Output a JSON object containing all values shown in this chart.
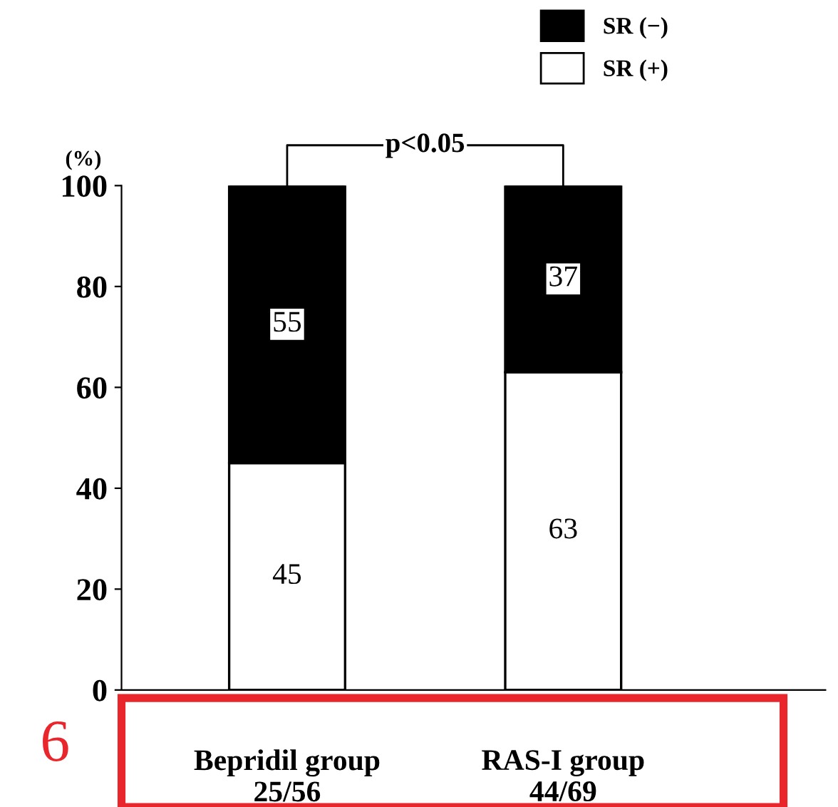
{
  "chart_data": {
    "type": "bar",
    "stacked": true,
    "categories": [
      "Bepridil group\n25/56",
      "RAS-I group\n44/69"
    ],
    "series": [
      {
        "name": "SR (+)",
        "color": "#ffffff",
        "values": [
          45,
          63
        ]
      },
      {
        "name": "SR (−)",
        "color": "#000000",
        "values": [
          55,
          37
        ]
      }
    ],
    "ylabel": "(%)",
    "ylim": [
      0,
      100
    ],
    "yticks": [
      0,
      20,
      40,
      60,
      80,
      100
    ],
    "data_labels": true,
    "legend": "top right",
    "grid": false,
    "annotations": [
      "p<0.05",
      "6"
    ]
  }
}
